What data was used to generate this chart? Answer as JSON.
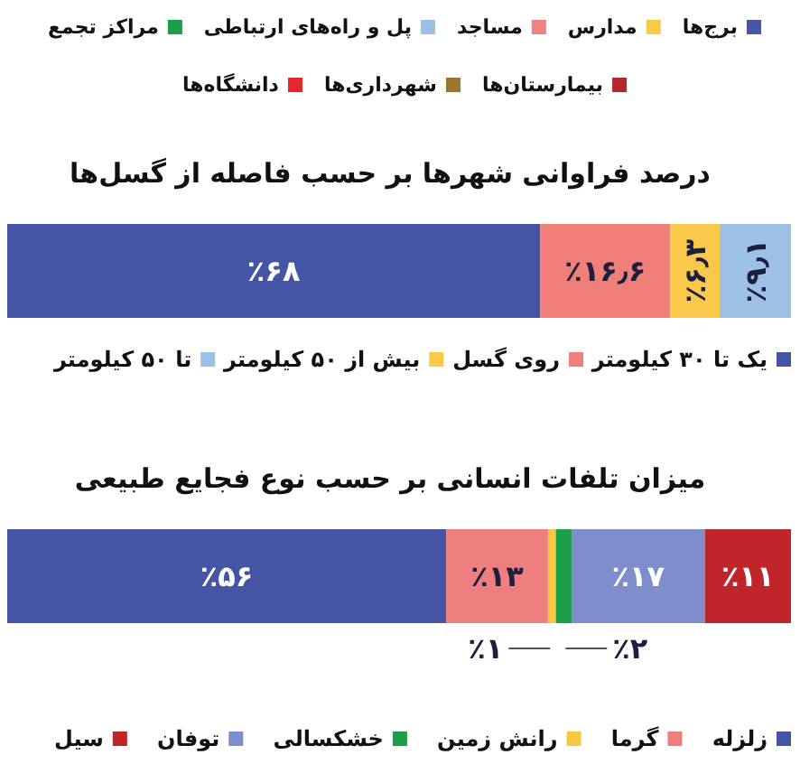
{
  "chart_data": [
    {
      "type": "other",
      "legend": "top",
      "series": [
        {
          "name": "برج‌ها",
          "color": "#4757a5"
        },
        {
          "name": "مدارس",
          "color": "#f9c94b"
        },
        {
          "name": "مساجد",
          "color": "#ef8283"
        },
        {
          "name": "پل و راه‌های ارتباطی",
          "color": "#9dbfe6"
        },
        {
          "name": "مراکز تجمع",
          "color": "#1a9e4b"
        },
        {
          "name": "بیمارستان‌ها",
          "color": "#b8262d"
        },
        {
          "name": "شهرداری‌ها",
          "color": "#9b7631"
        },
        {
          "name": "دانشگاه‌ها",
          "color": "#e7262b"
        }
      ]
    },
    {
      "type": "bar",
      "title": "درصد فراوانی شهرها بر حسب فاصله از گسل‌ها",
      "orientation": "horizontal",
      "stacked": true,
      "categories": [
        null
      ],
      "legend": "bottom",
      "series": [
        {
          "name": "یک تا ۳۰ کیلومتر",
          "color": "#4355a4",
          "values": [
            68
          ],
          "value_labels": [
            "٪۶۸"
          ]
        },
        {
          "name": "روی گسل",
          "color": "#f07e79",
          "values": [
            16.6
          ],
          "value_labels": [
            "٪۱۶٫۶"
          ]
        },
        {
          "name": "بیش از ۵۰ کیلومتر",
          "color": "#fbc94a",
          "values": [
            6.3
          ],
          "value_labels": [
            "٪۶٫۳"
          ]
        },
        {
          "name": "تا ۵۰ کیلومتر",
          "color": "#9dc0e5",
          "values": [
            9.1
          ],
          "value_labels": [
            "٪۹٫۱"
          ]
        }
      ]
    },
    {
      "type": "bar",
      "title": "میزان تلفات انسانی بر حسب نوع فجایع طبیعی",
      "orientation": "horizontal",
      "stacked": true,
      "categories": [
        null
      ],
      "legend": "bottom",
      "series": [
        {
          "name": "زلزله",
          "color": "#4355a4",
          "values": [
            56
          ],
          "value_labels": [
            "٪۵۶"
          ]
        },
        {
          "name": "گرما",
          "color": "#ef7e7e",
          "values": [
            13
          ],
          "value_labels": [
            "٪۱۳"
          ]
        },
        {
          "name": "رانش زمین",
          "color": "#f8c842",
          "values": [
            1
          ],
          "value_labels": [
            "٪۱"
          ]
        },
        {
          "name": "خشکسالی",
          "color": "#1c9e48",
          "values": [
            2
          ],
          "value_labels": [
            "٪۲"
          ]
        },
        {
          "name": "توفان",
          "color": "#7e8dcb",
          "values": [
            17
          ],
          "value_labels": [
            "٪۱۷"
          ]
        },
        {
          "name": "سیل",
          "color": "#c0252b",
          "values": [
            11
          ],
          "value_labels": [
            "٪۱۱"
          ]
        }
      ]
    }
  ]
}
